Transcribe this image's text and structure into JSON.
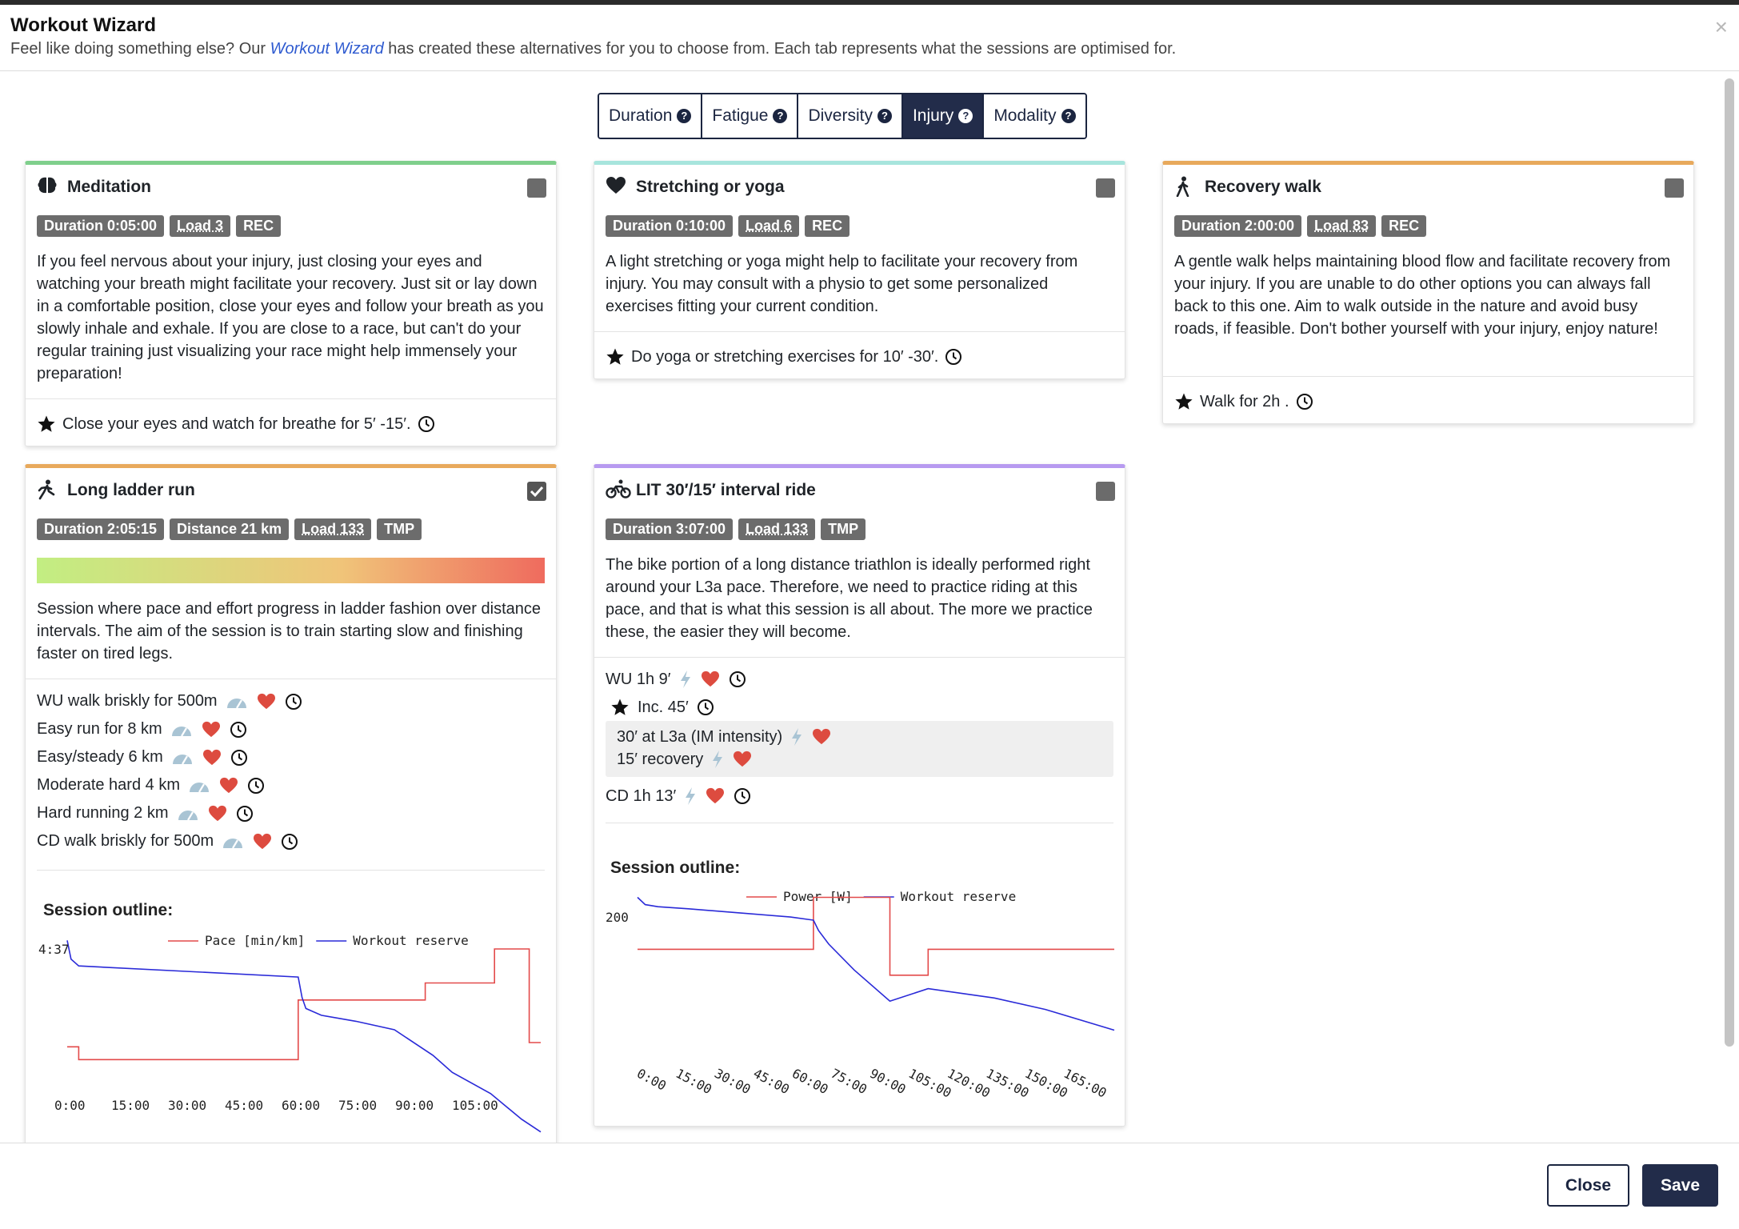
{
  "dialog": {
    "title": "Workout Wizard",
    "subtitle_pre": "Feel like doing something else? Our",
    "subtitle_link": "Workout Wizard",
    "subtitle_post": "has created these alternatives for you to choose from. Each tab represents what the sessions are optimised for.",
    "close_icon": "×"
  },
  "tabs": [
    {
      "label": "Duration",
      "active": false
    },
    {
      "label": "Fatigue",
      "active": false
    },
    {
      "label": "Diversity",
      "active": false
    },
    {
      "label": "Injury",
      "active": true
    },
    {
      "label": "Modality",
      "active": false
    }
  ],
  "cards": {
    "meditation": {
      "title": "Meditation",
      "icon": "brain-icon",
      "color": "#7fcf8c",
      "checked": false,
      "badges": [
        "Duration 0:05:00",
        "Load 3",
        "REC"
      ],
      "description": "If you feel nervous about your injury, just closing your eyes and watching your breath might facilitate your recovery. Just sit or lay down in a comfortable position, close your eyes and follow your breath as you slowly inhale and exhale. If you are close to a race, but can't do your regular training just visualizing your race might help immensely your preparation!",
      "footer": "Close your eyes and watch for breathe for 5′ -15′."
    },
    "stretching": {
      "title": "Stretching or yoga",
      "icon": "heart-icon",
      "color": "#a7e5dd",
      "checked": false,
      "badges": [
        "Duration 0:10:00",
        "Load 6",
        "REC"
      ],
      "description": "A light stretching or yoga might help to facilitate your recovery from injury. You may consult with a physio to get some personalized exercises fitting your current condition.",
      "footer": "Do yoga or stretching exercises for 10′ -30′."
    },
    "walk": {
      "title": "Recovery walk",
      "icon": "walking-icon",
      "color": "#e8a95c",
      "checked": false,
      "badges": [
        "Duration 2:00:00",
        "Load 83",
        "REC"
      ],
      "description": "A gentle walk helps maintaining blood flow and facilitate recovery from your injury. If you are unable to do other options you can always fall back to this one. Aim to walk outside in the nature and avoid busy roads, if feasible. Don't bother yourself with your injury, enjoy nature!",
      "footer": "Walk for 2h ."
    },
    "run": {
      "title": "Long ladder run",
      "icon": "running-icon",
      "color": "#e8a95c",
      "checked": true,
      "badges": [
        "Duration 2:05:15",
        "Distance 21 km",
        "Load 133",
        "TMP"
      ],
      "description": "Session where pace and effort progress in ladder fashion over distance intervals. The aim of the session is to train starting slow and finishing faster on tired legs.",
      "steps": [
        "WU walk briskly for 500m",
        "Easy run for 8 km",
        "Easy/steady 6 km",
        "Moderate hard 4 km",
        "Hard running 2 km",
        "CD walk briskly for 500m"
      ],
      "outline_label": "Session outline:"
    },
    "ride": {
      "title": "LIT 30′/15′ interval ride",
      "icon": "bicycle-icon",
      "color": "#b79af0",
      "checked": false,
      "badges": [
        "Duration 3:07:00",
        "Load 133",
        "TMP"
      ],
      "description": "The bike portion of a long distance triathlon is ideally performed right around your L3a pace. Therefore, we need to practice riding at this pace, and that is what this session is all about. The more we practice these, the easier they will become.",
      "step_wu": "WU 1h 9′",
      "step_inc": "Inc. 45′",
      "step_rep1": "30′ at L3a (IM intensity)",
      "step_rep2": "15′ recovery",
      "step_cd": "CD 1h 13′",
      "outline_label": "Session outline:"
    }
  },
  "chart_data": [
    {
      "type": "line",
      "title": "",
      "x_tick_labels": [
        "0:00",
        "15:00",
        "30:00",
        "45:00",
        "60:00",
        "75:00",
        "90:00",
        "105:00"
      ],
      "y_tick_labels": [
        "4:37"
      ],
      "legend_position": "top",
      "series": [
        {
          "name": "Pace [min/km]",
          "color": "#e34a4a",
          "x": [
            0,
            3,
            3,
            60,
            60,
            93,
            93,
            111,
            111,
            120,
            120,
            123
          ],
          "y": [
            -0.25,
            -0.25,
            -0.4,
            -0.4,
            0.3,
            0.3,
            0.5,
            0.5,
            0.9,
            0.9,
            -0.2,
            -0.2
          ]
        },
        {
          "name": "Workout reserve",
          "color": "#2a2ad8",
          "x": [
            0,
            1,
            3,
            60,
            61,
            62,
            66,
            75,
            85,
            95,
            100,
            110,
            118,
            123
          ],
          "y": [
            1.0,
            0.78,
            0.7,
            0.57,
            0.33,
            0.2,
            0.12,
            0.05,
            -0.05,
            -0.35,
            -0.55,
            -0.8,
            -1.1,
            -1.25
          ]
        }
      ]
    },
    {
      "type": "line",
      "title": "",
      "x_tick_labels": [
        "0:00",
        "15:00",
        "30:00",
        "45:00",
        "60:00",
        "75:00",
        "90:00",
        "105:00",
        "120:00",
        "135:00",
        "150:00",
        "165:00"
      ],
      "y_tick_labels": [
        "200"
      ],
      "legend_position": "top",
      "series": [
        {
          "name": "Power [W]",
          "color": "#e34a4a",
          "x": [
            0,
            69,
            69,
            99,
            99,
            114,
            114,
            187
          ],
          "y": [
            150,
            150,
            200,
            200,
            125,
            125,
            150,
            150
          ]
        },
        {
          "name": "Workout reserve",
          "color": "#2a2ad8",
          "x": [
            0,
            3,
            8,
            20,
            40,
            60,
            69,
            71,
            75,
            85,
            99,
            114,
            140,
            160,
            187
          ],
          "y": [
            200,
            193,
            191,
            189,
            185,
            181,
            178,
            168,
            155,
            130,
            100,
            112,
            103,
            92,
            72
          ]
        }
      ]
    }
  ],
  "buttons": {
    "close": "Close",
    "save": "Save"
  }
}
